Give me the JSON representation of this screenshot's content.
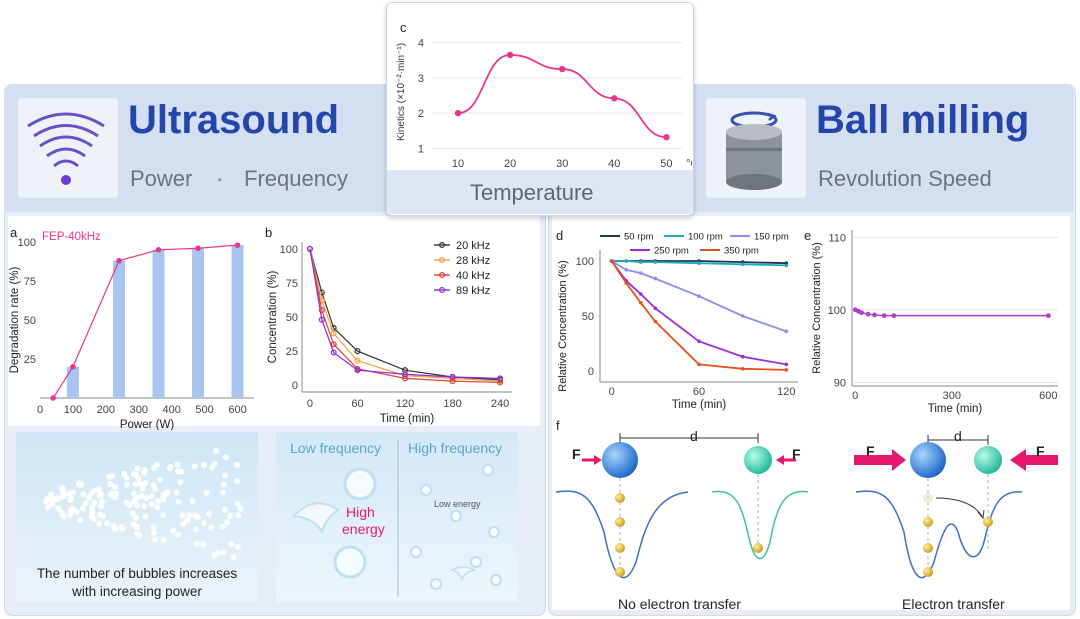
{
  "left_header": {
    "title": "Ultrasound",
    "subtitle_a": "Power",
    "dot": "·",
    "subtitle_b": "Frequency"
  },
  "right_header": {
    "title": "Ball milling",
    "subtitle": "Revolution Speed"
  },
  "center_header": {
    "label": "Temperature"
  },
  "colors": {
    "pink": "#e8378f",
    "bar": "#a8c4f0",
    "title": "#2346a8",
    "panel": "#dfe8f5",
    "purple": "#8a2be2",
    "orange": "#e8501f"
  },
  "chart_data": [
    {
      "panel": "c",
      "type": "line",
      "x": [
        10,
        20,
        30,
        40,
        50
      ],
      "values": [
        2.0,
        3.65,
        3.25,
        2.42,
        1.32
      ],
      "ylabel": "Kinetics (×10⁻²·min⁻¹)",
      "xunit": "°C",
      "xticks": [
        "10",
        "20",
        "30",
        "40",
        "50"
      ],
      "yticks": [
        "1",
        "2",
        "3",
        "4"
      ],
      "ylim": [
        0.9,
        4.3
      ],
      "xlim": [
        5,
        53
      ]
    },
    {
      "panel": "a",
      "type": "bar",
      "series_name": "FEP-40kHz",
      "x": [
        100,
        240,
        360,
        480,
        600
      ],
      "values": [
        20,
        88,
        95,
        96,
        98
      ],
      "line_x": [
        40,
        100,
        240,
        360,
        480,
        600
      ],
      "line_values": [
        0,
        20,
        88,
        95,
        96,
        98
      ],
      "xlabel": "Power (W)",
      "ylabel": "Degradation rate (%)",
      "xticks": [
        "0",
        "100",
        "200",
        "300",
        "400",
        "500",
        "600"
      ],
      "yticks": [
        "25",
        "50",
        "75",
        "100"
      ],
      "ylim": [
        0,
        100
      ],
      "xlim": [
        0,
        650
      ]
    },
    {
      "panel": "b",
      "type": "line",
      "x": [
        0,
        15,
        30,
        60,
        120,
        180,
        240
      ],
      "series": [
        {
          "name": "20 kHz",
          "color": "#333333",
          "values": [
            100,
            68,
            42,
            25,
            11,
            6,
            4
          ]
        },
        {
          "name": "28 kHz",
          "color": "#f5a243",
          "values": [
            100,
            62,
            38,
            18,
            7,
            5,
            3
          ]
        },
        {
          "name": "40 kHz",
          "color": "#e8412c",
          "values": [
            100,
            55,
            30,
            12,
            5,
            3,
            2
          ]
        },
        {
          "name": "89 kHz",
          "color": "#8a2be2",
          "values": [
            100,
            48,
            24,
            11,
            8,
            6,
            5
          ]
        }
      ],
      "xlabel": "Time (min)",
      "ylabel": "Concentration (%)",
      "xticks": [
        "0",
        "60",
        "120",
        "180",
        "240"
      ],
      "yticks": [
        "0",
        "25",
        "50",
        "75",
        "100"
      ],
      "ylim": [
        -5,
        105
      ],
      "xlim": [
        -10,
        255
      ]
    },
    {
      "panel": "d",
      "type": "line",
      "x": [
        0,
        10,
        20,
        30,
        60,
        90,
        120
      ],
      "series": [
        {
          "name": "50 rpm",
          "color": "#1b3a4a",
          "values": [
            100,
            100,
            100,
            100,
            100,
            99,
            98
          ]
        },
        {
          "name": "100 rpm",
          "color": "#24a8c8",
          "values": [
            100,
            100,
            99,
            99,
            98,
            97,
            96
          ]
        },
        {
          "name": "150 rpm",
          "color": "#8a90e6",
          "values": [
            100,
            92,
            89,
            84,
            68,
            50,
            36
          ]
        },
        {
          "name": "250 rpm",
          "color": "#9b30d9",
          "values": [
            100,
            82,
            70,
            57,
            27,
            13,
            6
          ]
        },
        {
          "name": "350 rpm",
          "color": "#e8501f",
          "values": [
            100,
            80,
            62,
            45,
            6,
            2,
            1
          ]
        }
      ],
      "xlabel": "Time (min)",
      "ylabel": "Relative Concentration (%)",
      "xticks": [
        "0",
        "60",
        "120"
      ],
      "yticks": [
        "0",
        "50",
        "100"
      ],
      "ylim": [
        -10,
        110
      ],
      "xlim": [
        -8,
        128
      ]
    },
    {
      "panel": "e",
      "type": "line",
      "x": [
        0,
        10,
        20,
        40,
        60,
        90,
        120,
        600
      ],
      "series": [
        {
          "name": "",
          "color": "#b03ec8",
          "values": [
            100,
            99.8,
            99.6,
            99.4,
            99.3,
            99.2,
            99.2,
            99.2
          ]
        }
      ],
      "xlabel": "Time (min)",
      "ylabel": "Relative Concentration (%)",
      "xticks": [
        "0",
        "300",
        "600"
      ],
      "yticks": [
        "90",
        "100",
        "110"
      ],
      "ylim": [
        89.5,
        111
      ],
      "xlim": [
        -10,
        630
      ]
    }
  ],
  "panel_labels": {
    "a": "a",
    "b": "b",
    "c": "c",
    "d": "d",
    "e": "e",
    "f": "f"
  },
  "bubbles_caption": {
    "line1": "The number of bubbles increases",
    "line2": "with increasing power"
  },
  "frequency": {
    "low": "Low frequency",
    "high": "High frequency",
    "high_energy_1": "High",
    "high_energy_2": "energy",
    "low_energy": "Low energy"
  },
  "milling": {
    "F": "F",
    "d": "d",
    "no_transfer": "No electron transfer",
    "transfer": "Electron transfer"
  }
}
